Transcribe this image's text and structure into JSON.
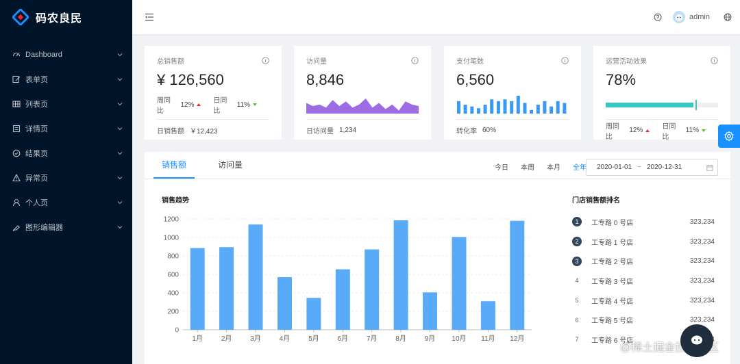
{
  "app": {
    "title": "码农良民"
  },
  "sidebar": {
    "items": [
      {
        "label": "Dashboard",
        "icon": "dashboard-icon"
      },
      {
        "label": "表单页",
        "icon": "form-icon"
      },
      {
        "label": "列表页",
        "icon": "table-icon"
      },
      {
        "label": "详情页",
        "icon": "profile-icon"
      },
      {
        "label": "结果页",
        "icon": "check-circle-icon"
      },
      {
        "label": "异常页",
        "icon": "warning-icon"
      },
      {
        "label": "个人页",
        "icon": "user-icon"
      },
      {
        "label": "图形编辑器",
        "icon": "highlight-icon"
      }
    ]
  },
  "header": {
    "username": "admin"
  },
  "cards": {
    "sales": {
      "title": "总销售额",
      "value": "¥ 126,560",
      "week_label": "周同比",
      "week_value": "12%",
      "day_label": "日同比",
      "day_value": "11%",
      "foot_label": "日销售额",
      "foot_value": "￥12,423"
    },
    "visits": {
      "title": "访问量",
      "value": "8,846",
      "foot_label": "日访问量",
      "foot_value": "1,234",
      "area_values": [
        7,
        5,
        6,
        4,
        9,
        5,
        8,
        4,
        6,
        10,
        4,
        7,
        3,
        6,
        2,
        8,
        6,
        5
      ]
    },
    "payments": {
      "title": "支付笔数",
      "value": "6,560",
      "foot_label": "转化率",
      "foot_value": "60%",
      "bar_values": [
        7,
        5,
        4,
        3,
        5,
        8,
        7,
        8,
        7,
        10,
        6,
        2,
        5,
        7,
        4,
        7,
        6
      ]
    },
    "operations": {
      "title": "运营活动效果",
      "value": "78%",
      "progress": 0.78,
      "target": 0.8,
      "week_label": "周同比",
      "week_value": "12%",
      "day_label": "日同比",
      "day_value": "11%"
    }
  },
  "panel": {
    "tabs": [
      "销售额",
      "访问量"
    ],
    "ranges": [
      "今日",
      "本周",
      "本月",
      "全年"
    ],
    "date_start": "2020-01-01",
    "date_sep": "~",
    "date_end": "2020-12-31",
    "chart_title": "销售趋势",
    "rank_title": "门店销售额排名",
    "ranking": [
      {
        "rank": "1",
        "name": "工专路 0 号店",
        "value": "323,234"
      },
      {
        "rank": "2",
        "name": "工专路 1 号店",
        "value": "323,234"
      },
      {
        "rank": "3",
        "name": "工专路 2 号店",
        "value": "323,234"
      },
      {
        "rank": "4",
        "name": "工专路 3 号店",
        "value": "323,234"
      },
      {
        "rank": "5",
        "name": "工专路 4 号店",
        "value": "323,234"
      },
      {
        "rank": "6",
        "name": "工专路 5 号店",
        "value": "323,234"
      },
      {
        "rank": "7",
        "name": "工专路 6 号店",
        "value": "323,234"
      }
    ]
  },
  "chart_data": {
    "type": "bar",
    "title": "销售趋势",
    "categories": [
      "1月",
      "2月",
      "3月",
      "4月",
      "5月",
      "6月",
      "7月",
      "8月",
      "9月",
      "10月",
      "11月",
      "12月"
    ],
    "values": [
      885,
      895,
      1140,
      570,
      345,
      655,
      870,
      1185,
      405,
      1005,
      310,
      1180
    ],
    "ylim": [
      0,
      1200
    ],
    "yticks": [
      0,
      200,
      400,
      600,
      800,
      1000,
      1200
    ],
    "grid": true,
    "bar_color": "#5aabf7"
  },
  "colors": {
    "primary": "#1890ff",
    "sidebar_bg": "#001529",
    "area": "#9b6ce3",
    "progress": "#36c8c0",
    "up": "#f5222d",
    "down": "#52c41a"
  },
  "watermark": "@稀土掘金技术社区"
}
